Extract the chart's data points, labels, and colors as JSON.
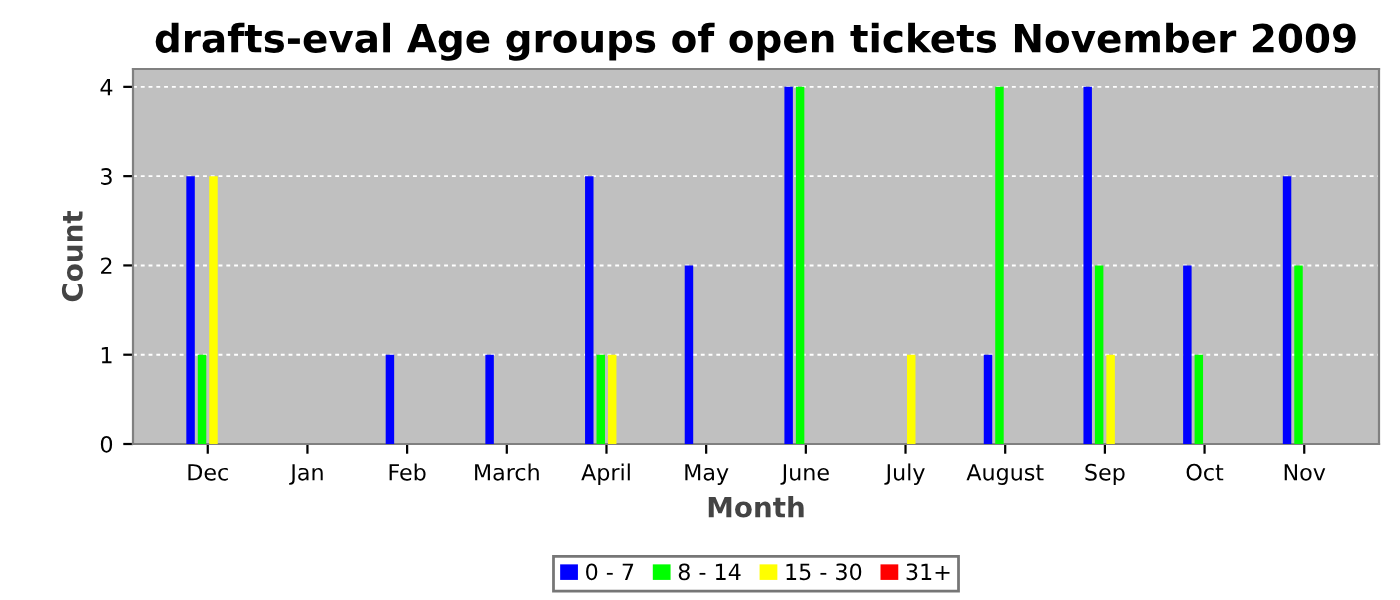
{
  "chart_data": {
    "type": "bar",
    "title": "drafts-eval Age groups of open tickets November 2009",
    "xlabel": "Month",
    "ylabel": "Count",
    "categories": [
      "Dec",
      "Jan",
      "Feb",
      "March",
      "April",
      "May",
      "June",
      "July",
      "August",
      "Sep",
      "Oct",
      "Nov"
    ],
    "series": [
      {
        "name": "0 - 7",
        "color": "#0000ff",
        "values": [
          3,
          0,
          1,
          1,
          3,
          2,
          4,
          0,
          1,
          4,
          2,
          3
        ]
      },
      {
        "name": "8 - 14",
        "color": "#00ff00",
        "values": [
          1,
          0,
          0,
          0,
          1,
          0,
          4,
          0,
          4,
          2,
          1,
          2
        ]
      },
      {
        "name": "15 - 30",
        "color": "#ffff00",
        "values": [
          3,
          0,
          0,
          0,
          1,
          0,
          0,
          1,
          0,
          1,
          0,
          0
        ]
      },
      {
        "name": "31+",
        "color": "#ff0000",
        "values": [
          0,
          0,
          0,
          0,
          0,
          0,
          0,
          0,
          0,
          0,
          0,
          0
        ]
      }
    ],
    "ylim": [
      0,
      4.2
    ],
    "yticks": [
      0,
      1,
      2,
      3,
      4
    ],
    "grid": "y",
    "legend": "bottom"
  }
}
